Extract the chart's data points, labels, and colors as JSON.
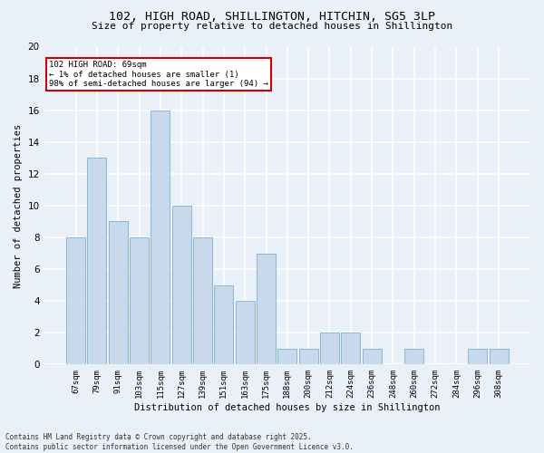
{
  "title_line1": "102, HIGH ROAD, SHILLINGTON, HITCHIN, SG5 3LP",
  "title_line2": "Size of property relative to detached houses in Shillington",
  "xlabel": "Distribution of detached houses by size in Shillington",
  "ylabel": "Number of detached properties",
  "categories": [
    "67sqm",
    "79sqm",
    "91sqm",
    "103sqm",
    "115sqm",
    "127sqm",
    "139sqm",
    "151sqm",
    "163sqm",
    "175sqm",
    "188sqm",
    "200sqm",
    "212sqm",
    "224sqm",
    "236sqm",
    "248sqm",
    "260sqm",
    "272sqm",
    "284sqm",
    "296sqm",
    "308sqm"
  ],
  "values": [
    8,
    13,
    9,
    8,
    16,
    10,
    8,
    5,
    4,
    7,
    1,
    1,
    2,
    2,
    1,
    0,
    1,
    0,
    0,
    1,
    1
  ],
  "bar_color": "#c9d9ec",
  "bar_edge_color": "#7bafd4",
  "annotation_text": "102 HIGH ROAD: 69sqm\n← 1% of detached houses are smaller (1)\n98% of semi-detached houses are larger (94) →",
  "annotation_box_color": "#ffffff",
  "annotation_box_edge_color": "#cc0000",
  "ylim": [
    0,
    20
  ],
  "yticks": [
    0,
    2,
    4,
    6,
    8,
    10,
    12,
    14,
    16,
    18,
    20
  ],
  "background_color": "#eaf0f8",
  "grid_color": "#ffffff",
  "footer_line1": "Contains HM Land Registry data © Crown copyright and database right 2025.",
  "footer_line2": "Contains public sector information licensed under the Open Government Licence v3.0."
}
